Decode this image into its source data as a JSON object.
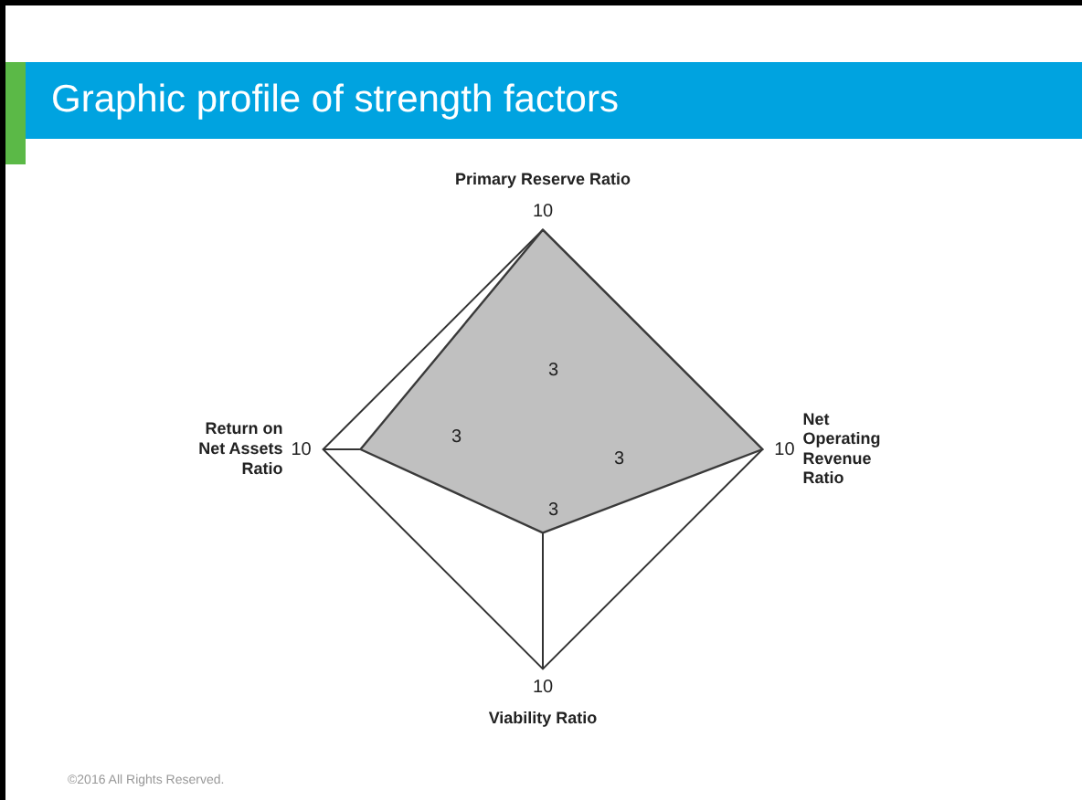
{
  "chart_data": {
    "type": "radar",
    "title": "Graphic profile of strength factors",
    "categories": [
      "Primary Reserve Ratio",
      "Net Operating Revenue Ratio",
      "Viability Ratio",
      "Return on Net Assets Ratio"
    ],
    "series": [
      {
        "color": "#c0c0c0",
        "values": [
          10,
          10,
          3.8,
          8.3
        ]
      }
    ],
    "ylim": [
      0,
      10
    ],
    "yticks": [
      3,
      10
    ],
    "grid": true,
    "legend": false,
    "marker": "none",
    "annotations": [
      "©2016 All Rights Reserved.",
      {
        "text": "10",
        "x": "Net Operating Revenue Ratio"
      },
      {
        "text": "3",
        "x": "Net Operating Revenue Ratio"
      },
      {
        "text": "10",
        "x": "Viability Ratio"
      },
      {
        "text": "3",
        "x": "Viability Ratio"
      },
      {
        "text": "10",
        "x": "Return on Net Assets Ratio"
      },
      {
        "text": "3",
        "x": "Return on Net Assets Ratio"
      }
    ]
  }
}
